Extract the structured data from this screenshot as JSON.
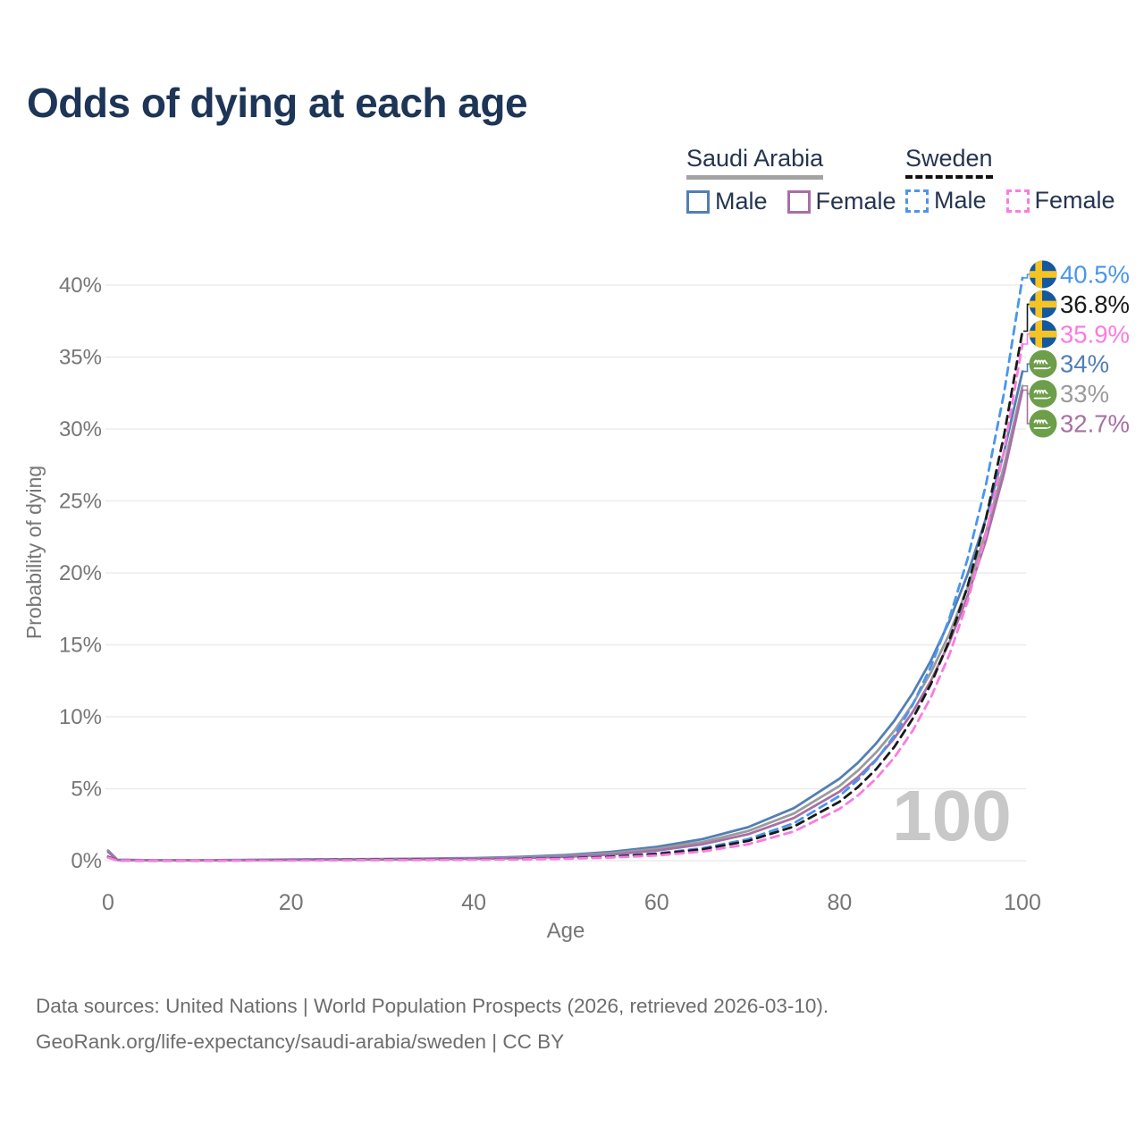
{
  "title": "Odds of dying at each age",
  "legend": {
    "groups": [
      {
        "name": "Saudi Arabia",
        "line_style": "solid",
        "underline_color": "#a3a3a3",
        "items": [
          {
            "label": "Male",
            "color": "#527fb5"
          },
          {
            "label": "Female",
            "color": "#a86fa5"
          }
        ]
      },
      {
        "name": "Sweden",
        "line_style": "dashed",
        "underline_color": "#111111",
        "items": [
          {
            "label": "Male",
            "color": "#4a95ef"
          },
          {
            "label": "Female",
            "color": "#fb7be0"
          }
        ]
      }
    ]
  },
  "watermark_age": "100",
  "footer": {
    "line1": "Data sources: United Nations | World Population Prospects (2026, retrieved 2026-03-10).",
    "line2": "GeoRank.org/life-expectancy/saudi-arabia/sweden | CC BY"
  },
  "chart_data": {
    "type": "line",
    "title": "Odds of dying at each age",
    "xlabel": "Age",
    "ylabel": "Probability of dying",
    "xlim": [
      0,
      100
    ],
    "ylim": [
      0,
      40.5
    ],
    "xticks": [
      0,
      20,
      40,
      60,
      80,
      100
    ],
    "yticks": [
      0,
      5,
      10,
      15,
      20,
      25,
      30,
      35,
      40
    ],
    "ytick_suffix": "%",
    "grid": "horizontal",
    "legend_position": "top-right",
    "x": [
      0,
      1,
      5,
      10,
      15,
      20,
      25,
      30,
      35,
      40,
      45,
      50,
      55,
      60,
      65,
      70,
      75,
      80,
      82,
      84,
      86,
      88,
      90,
      92,
      94,
      96,
      98,
      100
    ],
    "series": [
      {
        "name": "Saudi Arabia Male",
        "country": "Saudi Arabia",
        "sex": "Male",
        "flag": "saudi",
        "dash": false,
        "color": "#527fb5",
        "end_label": "34%",
        "end_value": 34.0,
        "values": [
          0.7,
          0.06,
          0.03,
          0.03,
          0.05,
          0.08,
          0.1,
          0.12,
          0.15,
          0.18,
          0.26,
          0.39,
          0.61,
          0.96,
          1.5,
          2.33,
          3.65,
          5.7,
          6.81,
          8.15,
          9.74,
          11.64,
          13.92,
          16.64,
          19.89,
          23.78,
          28.43,
          34.0
        ]
      },
      {
        "name": "Saudi Arabia Both sexes",
        "country": "Saudi Arabia",
        "sex": "Both",
        "flag": "saudi",
        "dash": false,
        "color": "#9b9b9b",
        "end_label": "33%",
        "end_value": 33.0,
        "values": [
          0.65,
          0.055,
          0.028,
          0.027,
          0.04,
          0.07,
          0.09,
          0.1,
          0.13,
          0.15,
          0.22,
          0.33,
          0.52,
          0.82,
          1.3,
          2.06,
          3.28,
          5.2,
          6.26,
          7.53,
          9.05,
          10.89,
          13.1,
          15.76,
          18.96,
          22.81,
          27.44,
          33.0
        ]
      },
      {
        "name": "Saudi Arabia Female",
        "country": "Saudi Arabia",
        "sex": "Female",
        "flag": "saudi",
        "dash": false,
        "color": "#a86fa5",
        "end_label": "32.7%",
        "end_value": 32.7,
        "values": [
          0.6,
          0.05,
          0.025,
          0.024,
          0.035,
          0.05,
          0.07,
          0.09,
          0.11,
          0.13,
          0.18,
          0.27,
          0.43,
          0.7,
          1.14,
          1.84,
          2.97,
          4.8,
          5.81,
          7.04,
          8.53,
          10.33,
          12.52,
          15.16,
          18.37,
          22.25,
          26.95,
          32.7
        ]
      },
      {
        "name": "Sweden Male",
        "country": "Sweden",
        "sex": "Male",
        "flag": "sweden",
        "dash": true,
        "color": "#4a95ef",
        "end_label": "40.5%",
        "end_value": 40.5,
        "values": [
          0.28,
          0.02,
          0.01,
          0.01,
          0.03,
          0.05,
          0.06,
          0.07,
          0.08,
          0.1,
          0.13,
          0.19,
          0.3,
          0.5,
          0.87,
          1.5,
          2.6,
          4.5,
          5.61,
          6.99,
          8.7,
          10.84,
          13.51,
          16.83,
          20.97,
          26.12,
          32.54,
          40.5
        ]
      },
      {
        "name": "Sweden Both sexes",
        "country": "Sweden",
        "sex": "Both",
        "flag": "sweden",
        "dash": true,
        "color": "#1a1a1a",
        "end_label": "36.8%",
        "end_value": 36.8,
        "values": [
          0.25,
          0.018,
          0.009,
          0.009,
          0.02,
          0.04,
          0.05,
          0.06,
          0.07,
          0.09,
          0.11,
          0.16,
          0.27,
          0.46,
          0.79,
          1.37,
          2.37,
          4.1,
          5.11,
          6.36,
          7.92,
          9.87,
          12.29,
          15.31,
          19.07,
          23.76,
          29.59,
          36.8
        ]
      },
      {
        "name": "Sweden Female",
        "country": "Sweden",
        "sex": "Female",
        "flag": "sweden",
        "dash": true,
        "color": "#fb7be0",
        "end_label": "35.9%",
        "end_value": 35.9,
        "values": [
          0.22,
          0.015,
          0.008,
          0.008,
          0.015,
          0.02,
          0.03,
          0.04,
          0.05,
          0.07,
          0.09,
          0.13,
          0.22,
          0.36,
          0.64,
          1.14,
          2.03,
          3.6,
          4.53,
          5.7,
          7.18,
          9.03,
          11.37,
          14.31,
          18.01,
          22.67,
          28.53,
          35.9
        ]
      }
    ],
    "flag_colors": {
      "sweden_blue": "#14599f",
      "sweden_yellow": "#f6c325",
      "saudi_green": "#6d9e49",
      "saudi_white": "#ffffff"
    },
    "style": {
      "grid_color": "#ebebeb",
      "axis_text_color": "#767676",
      "watermark_color": "#c8c8c8",
      "title_color": "#1d3557"
    }
  }
}
